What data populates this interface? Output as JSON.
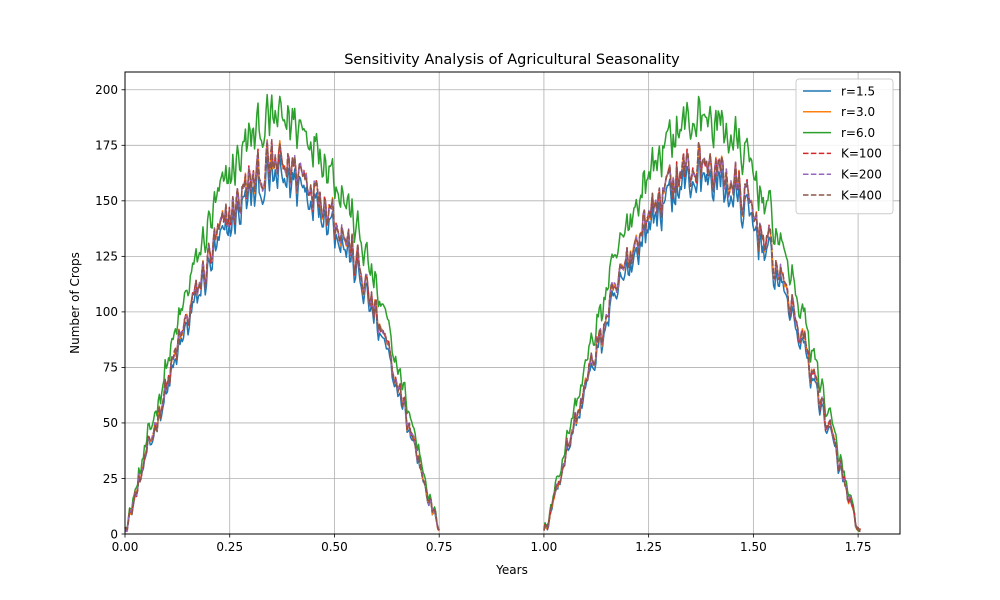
{
  "chart_data": {
    "type": "line",
    "title": "Sensitivity Analysis of Agricultural Seasonality",
    "xlabel": "Years",
    "ylabel": "Number of Crops",
    "xlim": [
      0,
      1.85
    ],
    "ylim": [
      0,
      208
    ],
    "xticks": [
      0,
      0.25,
      0.5,
      0.75,
      1,
      1.25,
      1.5,
      1.75
    ],
    "xtick_labels": [
      "0.00",
      "0.25",
      "0.50",
      "0.75",
      "1.00",
      "1.25",
      "1.50",
      "1.75"
    ],
    "yticks": [
      0,
      25,
      50,
      75,
      100,
      125,
      150,
      175,
      200
    ],
    "ytick_labels": [
      "0",
      "25",
      "50",
      "75",
      "100",
      "125",
      "150",
      "175",
      "200"
    ],
    "grid": true,
    "legend_position": "top-right",
    "segments": [
      [
        0,
        0.75
      ],
      [
        1.0,
        1.755
      ]
    ],
    "series": [
      {
        "name": "r=1.5",
        "color": "#1f77b4",
        "dash": "solid",
        "peak": 160
      },
      {
        "name": "r=3.0",
        "color": "#ff7f0e",
        "dash": "solid",
        "peak": 166
      },
      {
        "name": "r=6.0",
        "color": "#2ca02c",
        "dash": "solid",
        "peak": 187
      },
      {
        "name": "K=100",
        "color": "#d62728",
        "dash": "dashed",
        "peak": 166
      },
      {
        "name": "K=200",
        "color": "#9467bd",
        "dash": "dashed",
        "peak": 166
      },
      {
        "name": "K=400",
        "color": "#8c564b",
        "dash": "dashed",
        "peak": 166
      }
    ]
  }
}
